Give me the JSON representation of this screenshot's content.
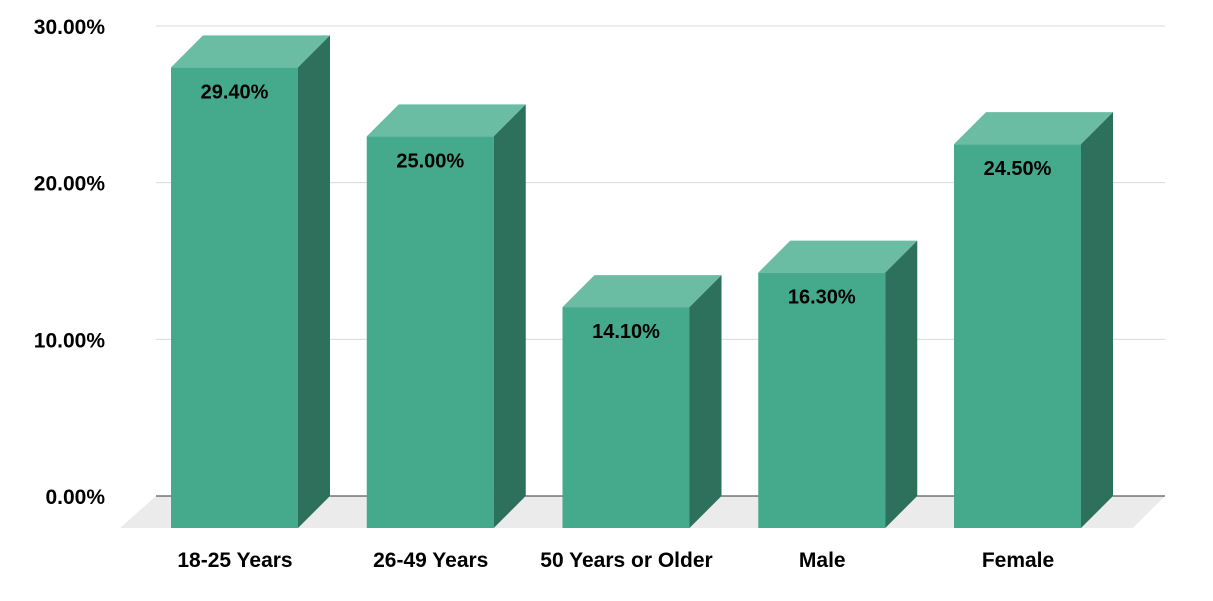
{
  "chart_data": {
    "type": "bar",
    "style": "3d-column",
    "categories": [
      "18-25 Years",
      "26-49 Years",
      "50 Years or Older",
      "Male",
      "Female"
    ],
    "values": [
      29.4,
      25.0,
      14.1,
      16.3,
      24.5
    ],
    "data_labels": [
      "29.40%",
      "25.00%",
      "14.10%",
      "16.30%",
      "24.50%"
    ],
    "y_ticks": [
      0,
      10,
      20,
      30
    ],
    "y_tick_labels": [
      "0.00%",
      "10.00%",
      "20.00%",
      "30.00%"
    ],
    "ylim": [
      0,
      30
    ],
    "grid": true,
    "legend": "none",
    "title": "",
    "xlabel": "",
    "ylabel": ""
  },
  "colors": {
    "bar_front": "#45aa8b",
    "bar_top": "#6abda2",
    "bar_side": "#2d705b",
    "floor": "#ebebeb",
    "grid": "#d9d9d9",
    "axis": "#333333"
  }
}
